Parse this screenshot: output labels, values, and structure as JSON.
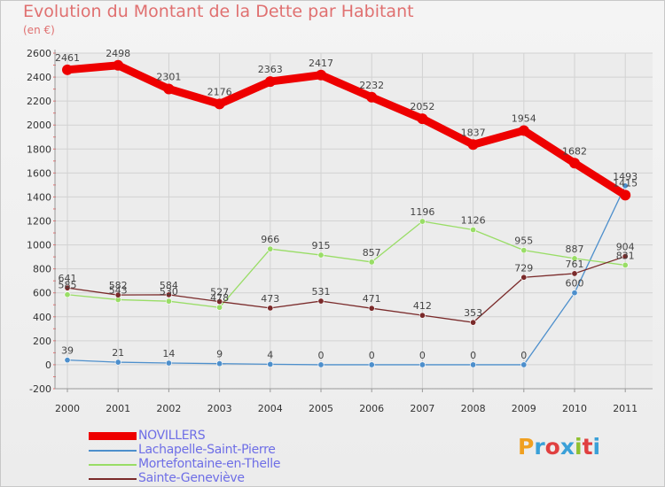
{
  "title": "Evolution du Montant de la Dette par Habitant",
  "subtitle": "(en €)",
  "logo": {
    "text": "Proxiti",
    "colors": [
      "#f0a020",
      "#3aa0d8",
      "#e04040",
      "#3aa0d8",
      "#90c030",
      "#e04040",
      "#3aa0d8"
    ]
  },
  "chart_data": {
    "type": "line",
    "x": [
      "2000",
      "2001",
      "2002",
      "2003",
      "2004",
      "2005",
      "2006",
      "2007",
      "2008",
      "2009",
      "2010",
      "2011"
    ],
    "ylim": [
      -200,
      2600
    ],
    "yticks": [
      "-200",
      "0",
      "200",
      "400",
      "600",
      "800",
      "1000",
      "1200",
      "1400",
      "1600",
      "1800",
      "2000",
      "2200",
      "2400",
      "2600"
    ],
    "grid": true,
    "legend_position": "bottom-left",
    "series": [
      {
        "name": "NOVILLERS",
        "color": "#ee0000",
        "bold": true,
        "values": [
          2461,
          2498,
          2301,
          2176,
          2363,
          2417,
          2232,
          2052,
          1837,
          1954,
          1682,
          1415
        ]
      },
      {
        "name": "Lachapelle-Saint-Pierre",
        "color": "#4d8fcc",
        "values": [
          39,
          21,
          14,
          9,
          4,
          0,
          0,
          0,
          0,
          0,
          600,
          1493
        ]
      },
      {
        "name": "Mortefontaine-en-Thelle",
        "color": "#99dd66",
        "values": [
          585,
          543,
          530,
          478,
          966,
          915,
          857,
          1196,
          1126,
          955,
          887,
          831
        ]
      },
      {
        "name": "Sainte-Geneviève",
        "color": "#7a2a2a",
        "values": [
          641,
          582,
          584,
          527,
          473,
          531,
          471,
          412,
          353,
          729,
          761,
          904
        ]
      }
    ]
  }
}
